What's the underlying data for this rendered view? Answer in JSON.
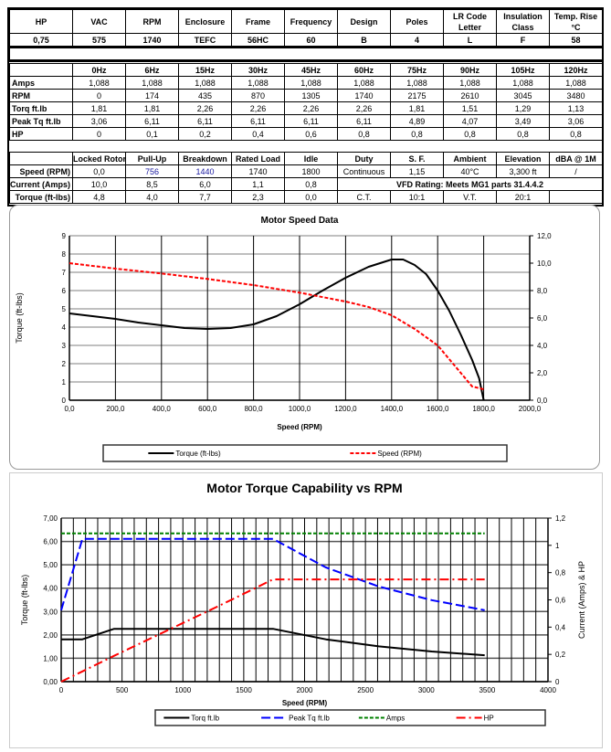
{
  "spec_table": {
    "headers": [
      "HP",
      "VAC",
      "RPM",
      "Enclosure",
      "Frame",
      "Frequency",
      "Design",
      "Poles",
      "LR Code Letter",
      "Insulation Class",
      "Temp. Rise °C"
    ],
    "values": [
      "0,75",
      "575",
      "1740",
      "TEFC",
      "56HC",
      "60",
      "B",
      "4",
      "L",
      "F",
      "58"
    ]
  },
  "freq_table": {
    "headers": [
      "",
      "0Hz",
      "6Hz",
      "15Hz",
      "30Hz",
      "45Hz",
      "60Hz",
      "75Hz",
      "90Hz",
      "105Hz",
      "120Hz"
    ],
    "rows": [
      [
        "Amps",
        "1,088",
        "1,088",
        "1,088",
        "1,088",
        "1,088",
        "1,088",
        "1,088",
        "1,088",
        "1,088",
        "1,088"
      ],
      [
        "RPM",
        "0",
        "174",
        "435",
        "870",
        "1305",
        "1740",
        "2175",
        "2610",
        "3045",
        "3480"
      ],
      [
        "Torq ft.lb",
        "1,81",
        "1,81",
        "2,26",
        "2,26",
        "2,26",
        "2,26",
        "1,81",
        "1,51",
        "1,29",
        "1,13"
      ],
      [
        "Peak Tq ft.lb",
        "3,06",
        "6,11",
        "6,11",
        "6,11",
        "6,11",
        "6,11",
        "4,89",
        "4,07",
        "3,49",
        "3,06"
      ],
      [
        "HP",
        "0",
        "0,1",
        "0,2",
        "0,4",
        "0,6",
        "0,8",
        "0,8",
        "0,8",
        "0,8",
        "0,8"
      ]
    ]
  },
  "perf_table": {
    "headers": [
      "",
      "Locked Rotor",
      "Pull-Up",
      "Breakdown",
      "Rated Load",
      "Idle",
      "Duty",
      "S. F.",
      "Ambient",
      "Elevation",
      "dBA @ 1M"
    ],
    "rows": [
      [
        "Speed (RPM)",
        "0,0",
        "756",
        "1440",
        "1740",
        "1800",
        "Continuous",
        "1,15",
        "40°C",
        "3,300 ft",
        "/"
      ],
      [
        "Current (Amps)",
        "10,0",
        "8,5",
        "6,0",
        "1,1",
        "0,8",
        "VFD Rating: Meets MG1 parts 31.4.4.2"
      ],
      [
        "Torque (ft-lbs)",
        "4,8",
        "4,0",
        "7,7",
        "2,3",
        "0,0",
        "C.T.",
        "10:1",
        "V.T.",
        "20:1",
        ""
      ]
    ]
  },
  "chart_data": [
    {
      "type": "line",
      "title": "Motor Speed Data",
      "xlabel": "Speed (RPM)",
      "ylabel": "Torque (ft-lbs)",
      "xlim": [
        0,
        2000
      ],
      "xticks": [
        "0,0",
        "200,0",
        "400,0",
        "600,0",
        "800,0",
        "1000,0",
        "1200,0",
        "1400,0",
        "1600,0",
        "1800,0",
        "2000,0"
      ],
      "ylim": [
        0,
        9
      ],
      "yticks": [
        "0",
        "1",
        "2",
        "3",
        "4",
        "5",
        "6",
        "7",
        "8",
        "9"
      ],
      "y2lim": [
        0,
        12
      ],
      "y2ticks": [
        "0,0",
        "2,0",
        "4,0",
        "6,0",
        "8,0",
        "10,0",
        "12,0"
      ],
      "grid": true,
      "legend": "bottom",
      "series": [
        {
          "name": "Torque (ft-lbs)",
          "axis": "left",
          "color": "#000000",
          "dash": "solid",
          "x": [
            0,
            100,
            200,
            300,
            400,
            500,
            600,
            700,
            800,
            900,
            1000,
            1100,
            1200,
            1300,
            1400,
            1450,
            1500,
            1550,
            1600,
            1650,
            1700,
            1750,
            1780,
            1800
          ],
          "y": [
            4.75,
            4.6,
            4.45,
            4.25,
            4.1,
            3.95,
            3.9,
            3.95,
            4.15,
            4.6,
            5.25,
            6.0,
            6.7,
            7.3,
            7.7,
            7.7,
            7.4,
            6.9,
            6.0,
            4.9,
            3.6,
            2.2,
            1.2,
            0
          ]
        },
        {
          "name": "Speed (RPM)",
          "axis": "right",
          "color": "#ff0000",
          "dash": "dashed",
          "x": [
            0,
            200,
            400,
            600,
            800,
            1000,
            1200,
            1300,
            1400,
            1500,
            1600,
            1650,
            1700,
            1750,
            1800
          ],
          "y": [
            10.0,
            9.6,
            9.25,
            8.85,
            8.4,
            7.85,
            7.2,
            6.8,
            6.2,
            5.2,
            4.0,
            3.0,
            2.0,
            1.0,
            0.8
          ]
        }
      ]
    },
    {
      "type": "line",
      "title": "Motor Torque Capability vs RPM",
      "xlabel": "Speed (RPM)",
      "ylabel": "Torque (ft-lbs)",
      "y2label": "Current (Amps) & HP",
      "xlim": [
        0,
        4000
      ],
      "xticks": [
        "0",
        "500",
        "1000",
        "1500",
        "2000",
        "2500",
        "3000",
        "3500",
        "4000"
      ],
      "ylim": [
        0,
        7
      ],
      "yticks": [
        "0,00",
        "1,00",
        "2,00",
        "3,00",
        "4,00",
        "5,00",
        "6,00",
        "7,00"
      ],
      "y2lim": [
        0,
        1.2
      ],
      "y2ticks": [
        "0",
        "0,2",
        "0,4",
        "0,6",
        "0,8",
        "1",
        "1,2"
      ],
      "grid": true,
      "legend": "bottom",
      "series": [
        {
          "name": "Torq ft.lb",
          "axis": "left",
          "color": "#000000",
          "dash": "solid",
          "x": [
            0,
            174,
            435,
            870,
            1305,
            1740,
            2175,
            2610,
            3045,
            3480
          ],
          "y": [
            1.81,
            1.81,
            2.26,
            2.26,
            2.26,
            2.26,
            1.81,
            1.51,
            1.29,
            1.13
          ]
        },
        {
          "name": "Peak Tq ft.lb",
          "axis": "left",
          "color": "#0000ff",
          "dash": "longdash",
          "x": [
            0,
            174,
            435,
            870,
            1305,
            1740,
            2175,
            2610,
            3045,
            3480
          ],
          "y": [
            3.06,
            6.11,
            6.11,
            6.11,
            6.11,
            6.11,
            4.89,
            4.07,
            3.49,
            3.06
          ]
        },
        {
          "name": "Amps",
          "axis": "right",
          "color": "#008000",
          "dash": "dashed",
          "x": [
            0,
            174,
            435,
            870,
            1305,
            1740,
            2175,
            2610,
            3045,
            3480
          ],
          "y": [
            1.088,
            1.088,
            1.088,
            1.088,
            1.088,
            1.088,
            1.088,
            1.088,
            1.088,
            1.088
          ]
        },
        {
          "name": "HP",
          "axis": "right",
          "color": "#ff0000",
          "dash": "dashdot",
          "x": [
            0,
            174,
            435,
            870,
            1305,
            1740,
            2175,
            2610,
            3045,
            3480
          ],
          "y": [
            0,
            0.075,
            0.19,
            0.375,
            0.56,
            0.75,
            0.75,
            0.75,
            0.75,
            0.75
          ]
        }
      ]
    }
  ]
}
